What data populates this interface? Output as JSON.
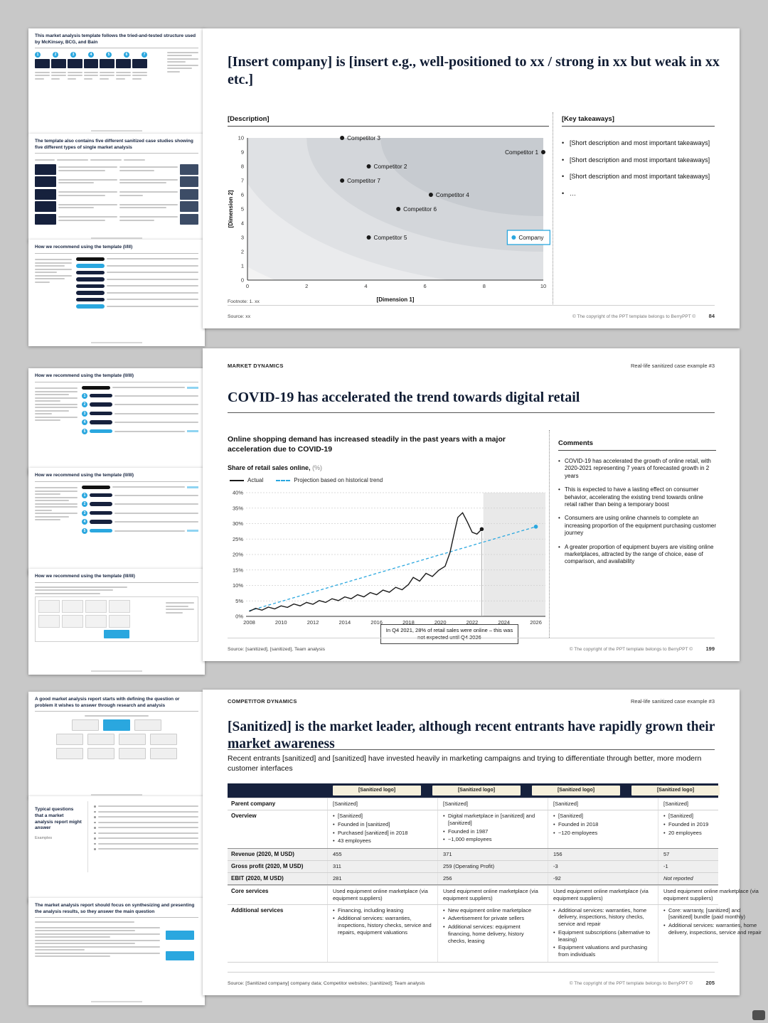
{
  "page": {
    "bg_color": "#c8c8c8",
    "copyright": "© The copyright of the PPT template belongs to BerryPPT ©",
    "accent_blue": "#2aa7df",
    "navy": "#16213d"
  },
  "thumbnails": [
    {
      "title": "This market analysis template follows the tried-and-tested structure used by McKinsey, BCG, and Bain",
      "steps": [
        "1",
        "2",
        "3",
        "4",
        "5",
        "6",
        "7"
      ]
    },
    {
      "title": "The template also contains five different sanitized case studies showing five different types of single market analysis"
    },
    {
      "title": "How we recommend using the template (I/III)"
    },
    {
      "title": "How we recommend using the template (II/III)",
      "steps": [
        "1",
        "2",
        "3",
        "4",
        "5"
      ]
    },
    {
      "title": "How we recommend using the template (II/III)",
      "steps": [
        "1",
        "2",
        "3",
        "4",
        "5"
      ]
    },
    {
      "title": "How we recommend using the template (III/III)"
    },
    {
      "title": "A good market analysis report starts with defining the question or problem it wishes to answer through research and analysis"
    },
    {
      "title": "Typical questions that a market analysis report might answer",
      "subtitle": "Examples"
    },
    {
      "title": "The market analysis report should focus on synthesizing and presenting the analysis results, so they answer the main question"
    }
  ],
  "slide1": {
    "title": "[Insert company] is [insert e.g., well-positioned to xx / strong in xx but weak in xx etc.]",
    "description_label": "[Description]",
    "takeaways_label": "[Key takeaways]",
    "takeaways": [
      "[Short description and most important takeaways]",
      "[Short description and most important takeaways]",
      "[Short description and most important takeaways]",
      "…"
    ],
    "footnote": "Footnote: 1. xx",
    "source": "Source: xx",
    "page_number": "84"
  },
  "slide2": {
    "eyebrow_left": "MARKET DYNAMICS",
    "eyebrow_right": "Real-life sanitized case example #3",
    "title": "COVID-19 has accelerated the trend towards digital retail",
    "subtitle": "Online shopping demand has increased steadily in the past years with a major acceleration due to COVID-19",
    "comments_label": "Comments",
    "comments": [
      "COVID-19 has accelerated the growth of online retail, with 2020-2021 representing 7 years of forecasted growth in 2 years",
      "This is expected to have a lasting effect on consumer behavior, accelerating the existing trend towards online retail rather than being a temporary boost",
      "Consumers are using online channels to complete an increasing proportion of the equipment purchasing customer journey",
      "A greater proportion of equipment buyers are visiting online marketplaces, attracted by the range of choice, ease of comparison, and availability"
    ],
    "source": "Source: [sanitized], [sanitized], Team analysis",
    "page_number": "199"
  },
  "slide3": {
    "eyebrow_left": "COMPETITOR DYNAMICS",
    "eyebrow_right": "Real-life sanitized case example #3",
    "title": "[Sanitized] is the market leader, although recent entrants have rapidly grown their market awareness",
    "subtitle": "Recent entrants [sanitized] and [sanitized] have invested heavily in marketing campaigns and trying to differentiate through better, more modern customer interfaces",
    "source": "Source: [Sanitized company] company data; Competitor websites; [sanitized]; Team analysis",
    "page_number": "205",
    "table": {
      "logo_header": [
        "[Sanitized logo]",
        "[Sanitized logo]",
        "[Sanitized logo]",
        "[Sanitized logo]"
      ],
      "rows": [
        {
          "label": "Parent company",
          "cells": [
            "[Sanitized]",
            "[Sanitized]",
            "[Sanitized]",
            "[Sanitized]"
          ]
        },
        {
          "label": "Overview",
          "cells": [
            [
              "[Sanitized]",
              "Founded in [sanitized]",
              "Purchased [sanitized] in 2018",
              "43 employees"
            ],
            [
              "Digital marketplace in [sanitized] and [sanitized]",
              "Founded in 1987",
              "~1,000 employees"
            ],
            [
              "[Sanitized]",
              "Founded in 2018",
              "~120 employees"
            ],
            [
              "[Sanitized]",
              "Founded in 2019",
              "20 employees"
            ]
          ]
        },
        {
          "label": "Revenue (2020, M USD)",
          "shaded": true,
          "cls": "fin-top",
          "cells": [
            "455",
            "371",
            "156",
            "57"
          ]
        },
        {
          "label": "Gross profit (2020, M USD)",
          "shaded": true,
          "cells": [
            "311",
            "259 (Operating Profit)",
            "-3",
            "-1"
          ]
        },
        {
          "label": "EBIT (2020, M USD)",
          "shaded": true,
          "cls": "fin-bot",
          "cells": [
            "281",
            "256",
            "-92",
            "Not reported"
          ]
        },
        {
          "label": "Core services",
          "cells": [
            "Used equipment online marketplace (via equipment suppliers)",
            "Used equipment online marketplace (via equipment suppliers)",
            "Used equipment online marketplace (via equipment suppliers)",
            "Used equipment online marketplace (via equipment suppliers)"
          ]
        },
        {
          "label": "Additional services",
          "cells": [
            [
              "Financing, including leasing",
              "Additional services: warranties, inspections, history checks, service and repairs, equipment valuations"
            ],
            [
              "New equipment online marketplace",
              "Advertisement for private sellers",
              "Additional services: equipment financing, home delivery, history checks, leasing"
            ],
            [
              "Additional services: warranties, home delivery, inspections, history checks, service and repair",
              "Equipment subscriptions (alternative to leasing)",
              "Equipment valuations and purchasing from individuals"
            ],
            [
              "Core: warranty, [sanitized] and [sanitized] bundle (paid monthly)",
              "Additional services: warranties, home delivery, inspections, service and repair"
            ]
          ]
        }
      ]
    }
  },
  "chart_data": [
    {
      "type": "scatter",
      "title": "[Description]",
      "xlabel": "[Dimension 1]",
      "ylabel": "[Dimension 2]",
      "xlim": [
        0,
        10
      ],
      "ylim": [
        0,
        10
      ],
      "xticks": [
        0,
        2,
        4,
        6,
        8,
        10
      ],
      "yticks": [
        0,
        1,
        2,
        3,
        4,
        5,
        6,
        7,
        8,
        9,
        10
      ],
      "points": [
        {
          "label": "Competitor 3",
          "x": 3.2,
          "y": 10,
          "color": "#1a1a1a",
          "label_side": "right"
        },
        {
          "label": "Competitor 1",
          "x": 10,
          "y": 9,
          "color": "#1a1a1a",
          "label_side": "left"
        },
        {
          "label": "Competitor 2",
          "x": 4.1,
          "y": 8,
          "color": "#1a1a1a",
          "label_side": "right"
        },
        {
          "label": "Competitor 7",
          "x": 3.2,
          "y": 7,
          "color": "#1a1a1a",
          "label_side": "right"
        },
        {
          "label": "Competitor 4",
          "x": 6.2,
          "y": 6,
          "color": "#1a1a1a",
          "label_side": "right"
        },
        {
          "label": "Competitor 6",
          "x": 5.1,
          "y": 5,
          "color": "#1a1a1a",
          "label_side": "right"
        },
        {
          "label": "Competitor 5",
          "x": 4.1,
          "y": 3,
          "color": "#1a1a1a",
          "label_side": "right"
        },
        {
          "label": "Company",
          "x": 9.0,
          "y": 3,
          "color": "#2aa7df",
          "label_side": "right",
          "highlight": true
        }
      ]
    },
    {
      "type": "line",
      "title": "Share of retail sales online,",
      "unit_label": "(%)",
      "legend": [
        "Actual",
        "Projection based on historical trend"
      ],
      "xlim": [
        2007.8,
        2026.6
      ],
      "ylim": [
        0,
        40
      ],
      "yticks": [
        0,
        5,
        10,
        15,
        20,
        25,
        30,
        35,
        40
      ],
      "xticks": [
        2008,
        2010,
        2012,
        2014,
        2016,
        2018,
        2020,
        2022,
        2024,
        2026
      ],
      "forecast_shade_start": 2022.7,
      "annotation": "In Q4 2021, 28% of retail sales were online – this was not expected until Q4 2026",
      "series": [
        {
          "name": "Actual",
          "style": "solid",
          "color": "#1a1a1a",
          "points": [
            [
              2008,
              1.6
            ],
            [
              2008.4,
              2.6
            ],
            [
              2008.8,
              2.0
            ],
            [
              2009.2,
              3.0
            ],
            [
              2009.6,
              2.4
            ],
            [
              2010,
              3.4
            ],
            [
              2010.4,
              2.9
            ],
            [
              2010.8,
              4.0
            ],
            [
              2011.2,
              3.4
            ],
            [
              2011.6,
              4.5
            ],
            [
              2012,
              3.9
            ],
            [
              2012.4,
              5.1
            ],
            [
              2012.8,
              4.5
            ],
            [
              2013.2,
              5.7
            ],
            [
              2013.6,
              5.1
            ],
            [
              2014,
              6.3
            ],
            [
              2014.4,
              5.7
            ],
            [
              2014.8,
              7.0
            ],
            [
              2015.2,
              6.3
            ],
            [
              2015.6,
              7.7
            ],
            [
              2016,
              7.0
            ],
            [
              2016.4,
              8.5
            ],
            [
              2016.8,
              7.8
            ],
            [
              2017.2,
              9.4
            ],
            [
              2017.6,
              8.6
            ],
            [
              2018,
              10.3
            ],
            [
              2018.3,
              12.6
            ],
            [
              2018.7,
              11.4
            ],
            [
              2019.1,
              13.9
            ],
            [
              2019.5,
              12.9
            ],
            [
              2019.9,
              14.9
            ],
            [
              2020.3,
              16.2
            ],
            [
              2020.6,
              20.5
            ],
            [
              2020.9,
              27.5
            ],
            [
              2021.1,
              32.0
            ],
            [
              2021.4,
              33.5
            ],
            [
              2021.7,
              30.5
            ],
            [
              2022.0,
              27.2
            ],
            [
              2022.3,
              26.6
            ],
            [
              2022.6,
              28.2
            ]
          ]
        },
        {
          "name": "Projection based on historical trend",
          "style": "dashed",
          "color": "#2aa7df",
          "points": [
            [
              2008,
              1.8
            ],
            [
              2026,
              29.0
            ]
          ]
        }
      ]
    }
  ]
}
